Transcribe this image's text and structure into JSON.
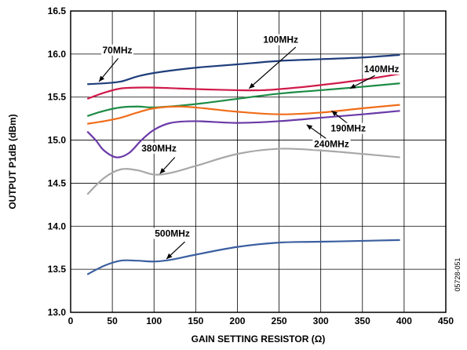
{
  "chart_data": {
    "type": "line",
    "title": "",
    "xlabel": "GAIN SETTING RESISTOR (Ω)",
    "ylabel": "OUTPUT P1dB (dBm)",
    "xlim": [
      0,
      450
    ],
    "ylim": [
      13.0,
      16.5
    ],
    "x_ticks": [
      "0",
      "50",
      "100",
      "150",
      "200",
      "250",
      "300",
      "350",
      "400",
      "450"
    ],
    "y_ticks": [
      "13.0",
      "13.5",
      "14.0",
      "14.5",
      "15.0",
      "15.5",
      "16.0",
      "16.5"
    ],
    "grid": true,
    "figure_id": "05728-051",
    "series": [
      {
        "name": "70MHz",
        "color": "#1f3e7c",
        "points": [
          [
            20,
            15.65
          ],
          [
            40,
            15.66
          ],
          [
            60,
            15.68
          ],
          [
            80,
            15.74
          ],
          [
            100,
            15.78
          ],
          [
            130,
            15.82
          ],
          [
            160,
            15.85
          ],
          [
            200,
            15.88
          ],
          [
            250,
            15.92
          ],
          [
            300,
            15.94
          ],
          [
            350,
            15.96
          ],
          [
            395,
            15.99
          ]
        ],
        "label_x": 56,
        "label_y": 16.01,
        "pointer": [
          [
            57,
            15.95
          ],
          [
            34,
            15.68
          ]
        ]
      },
      {
        "name": "100MHz",
        "color": "#d01b4a",
        "points": [
          [
            20,
            15.48
          ],
          [
            40,
            15.55
          ],
          [
            60,
            15.6
          ],
          [
            80,
            15.61
          ],
          [
            100,
            15.61
          ],
          [
            130,
            15.6
          ],
          [
            160,
            15.59
          ],
          [
            200,
            15.58
          ],
          [
            230,
            15.58
          ],
          [
            260,
            15.6
          ],
          [
            300,
            15.64
          ],
          [
            350,
            15.7
          ],
          [
            395,
            15.77
          ]
        ],
        "label_x": 252,
        "label_y": 16.13,
        "pointer": [
          [
            270,
            16.08
          ],
          [
            214,
            15.6
          ]
        ]
      },
      {
        "name": "140MHz",
        "color": "#1d8c45",
        "points": [
          [
            20,
            15.28
          ],
          [
            40,
            15.34
          ],
          [
            60,
            15.38
          ],
          [
            80,
            15.39
          ],
          [
            100,
            15.38
          ],
          [
            130,
            15.4
          ],
          [
            160,
            15.43
          ],
          [
            200,
            15.48
          ],
          [
            250,
            15.54
          ],
          [
            300,
            15.58
          ],
          [
            350,
            15.62
          ],
          [
            395,
            15.66
          ]
        ],
        "label_x": 373,
        "label_y": 15.79,
        "pointer": [
          [
            365,
            15.75
          ],
          [
            335,
            15.6
          ]
        ]
      },
      {
        "name": "190MHz",
        "color": "#f06d1a",
        "points": [
          [
            20,
            15.19
          ],
          [
            40,
            15.22
          ],
          [
            60,
            15.26
          ],
          [
            80,
            15.32
          ],
          [
            100,
            15.37
          ],
          [
            130,
            15.39
          ],
          [
            160,
            15.37
          ],
          [
            200,
            15.33
          ],
          [
            250,
            15.3
          ],
          [
            300,
            15.32
          ],
          [
            350,
            15.37
          ],
          [
            395,
            15.41
          ]
        ],
        "label_x": 333,
        "label_y": 15.1,
        "pointer": [
          [
            334,
            15.18
          ],
          [
            313,
            15.34
          ]
        ]
      },
      {
        "name": "240MHz",
        "color": "#6a3aa8",
        "points": [
          [
            20,
            15.1
          ],
          [
            30,
            15.0
          ],
          [
            40,
            14.88
          ],
          [
            55,
            14.8
          ],
          [
            70,
            14.85
          ],
          [
            85,
            15.0
          ],
          [
            100,
            15.12
          ],
          [
            120,
            15.2
          ],
          [
            150,
            15.22
          ],
          [
            200,
            15.2
          ],
          [
            250,
            15.22
          ],
          [
            300,
            15.26
          ],
          [
            350,
            15.3
          ],
          [
            395,
            15.34
          ]
        ],
        "label_x": 313,
        "label_y": 14.92,
        "pointer": [
          [
            312,
            14.98
          ],
          [
            283,
            15.18
          ]
        ]
      },
      {
        "name": "380MHz",
        "color": "#a8a8a8",
        "points": [
          [
            20,
            14.37
          ],
          [
            40,
            14.56
          ],
          [
            60,
            14.66
          ],
          [
            80,
            14.65
          ],
          [
            100,
            14.6
          ],
          [
            120,
            14.62
          ],
          [
            150,
            14.7
          ],
          [
            200,
            14.84
          ],
          [
            250,
            14.9
          ],
          [
            300,
            14.88
          ],
          [
            350,
            14.84
          ],
          [
            395,
            14.8
          ]
        ],
        "label_x": 106,
        "label_y": 14.87,
        "pointer": [
          [
            125,
            14.8
          ],
          [
            107,
            14.61
          ]
        ]
      },
      {
        "name": "500MHz",
        "color": "#3b5fa0",
        "points": [
          [
            20,
            13.44
          ],
          [
            40,
            13.54
          ],
          [
            60,
            13.6
          ],
          [
            80,
            13.6
          ],
          [
            100,
            13.59
          ],
          [
            120,
            13.61
          ],
          [
            150,
            13.67
          ],
          [
            200,
            13.76
          ],
          [
            250,
            13.81
          ],
          [
            300,
            13.82
          ],
          [
            350,
            13.83
          ],
          [
            395,
            13.84
          ]
        ],
        "label_x": 122,
        "label_y": 13.88,
        "pointer": [
          [
            137,
            13.82
          ],
          [
            115,
            13.62
          ]
        ]
      }
    ]
  }
}
